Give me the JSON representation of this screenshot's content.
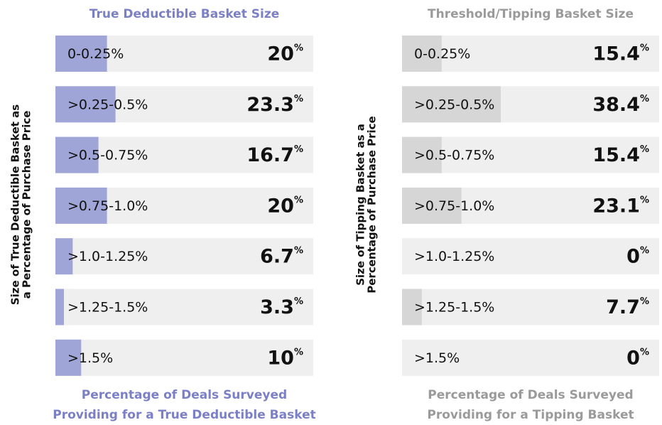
{
  "chart_data": [
    {
      "type": "bar",
      "orientation": "horizontal",
      "title": "True Deductible Basket Size",
      "ylabel": [
        "Size of True Deductible Basket as",
        "a Percentage of Purchase Price"
      ],
      "xlabel": [
        "Percentage of Deals Surveyed",
        "Providing for a True Deductible Basket"
      ],
      "categories": [
        "0-0.25%",
        ">0.25-0.5%",
        ">0.5-0.75%",
        ">0.75-1.0%",
        ">1.0-1.25%",
        ">1.25-1.5%",
        ">1.5%"
      ],
      "values": [
        20,
        23.3,
        16.7,
        20,
        6.7,
        3.3,
        10
      ],
      "value_unit": "%",
      "color": "#9fa5d6",
      "title_color": "#7b80c6",
      "xlim": [
        0,
        100
      ]
    },
    {
      "type": "bar",
      "orientation": "horizontal",
      "title": "Threshold/Tipping Basket Size",
      "ylabel": [
        "Size of Tipping Basket as a",
        "Percentage of Purchase Price"
      ],
      "xlabel": [
        "Percentage of Deals Surveyed",
        "Providing for a Tipping Basket"
      ],
      "categories": [
        "0-0.25%",
        ">0.25-0.5%",
        ">0.5-0.75%",
        ">0.75-1.0%",
        ">1.0-1.25%",
        ">1.25-1.5%",
        ">1.5%"
      ],
      "values": [
        15.4,
        38.4,
        15.4,
        23.1,
        0,
        7.7,
        0
      ],
      "value_unit": "%",
      "color": "#d6d6d6",
      "title_color": "#9a9a9a",
      "xlim": [
        0,
        100
      ]
    }
  ]
}
